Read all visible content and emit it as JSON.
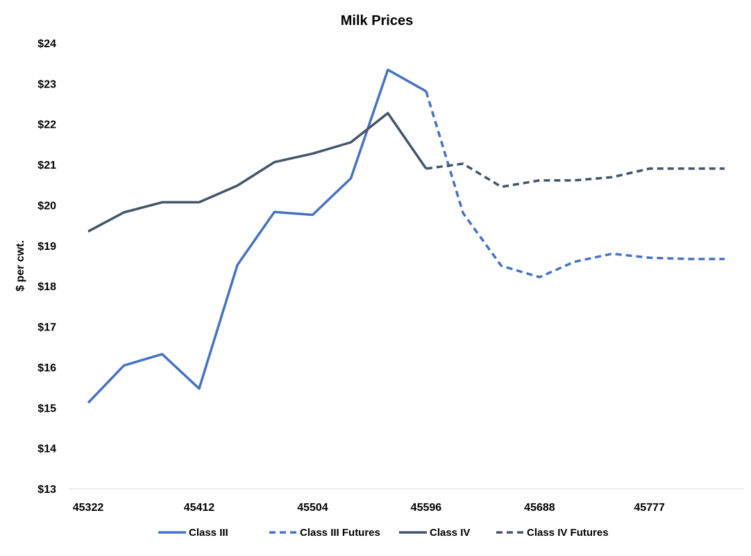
{
  "chart_data": {
    "type": "line",
    "title": "Milk Prices",
    "xlabel": "",
    "ylabel": "$ per cwt.",
    "xlim": [
      45322,
      45838
    ],
    "ylim": [
      13,
      24
    ],
    "y_ticks": [
      13,
      14,
      15,
      16,
      17,
      18,
      19,
      20,
      21,
      22,
      23,
      24
    ],
    "y_tick_labels": [
      "$13",
      "$14",
      "$15",
      "$16",
      "$17",
      "$18",
      "$19",
      "$20",
      "$21",
      "$22",
      "$23",
      "$24"
    ],
    "x_ticks": [
      45322,
      45412,
      45504,
      45596,
      45688,
      45777
    ],
    "x_tick_labels": [
      "45322",
      "45412",
      "45504",
      "45596",
      "45688",
      "45777"
    ],
    "grid": false,
    "legend_position": "bottom",
    "series": [
      {
        "name": "Class III",
        "color": "#4472C4",
        "dash": "solid",
        "x": [
          45322,
          45351,
          45382,
          45412,
          45443,
          45473,
          45504,
          45535,
          45565,
          45596
        ],
        "y": [
          15.12,
          16.04,
          16.32,
          15.47,
          18.52,
          19.83,
          19.76,
          20.66,
          23.34,
          22.81
        ]
      },
      {
        "name": "Class III Futures",
        "color": "#4472C4",
        "dash": "dashed",
        "x": [
          45596,
          45626,
          45657,
          45688,
          45716,
          45747,
          45777,
          45808,
          45838
        ],
        "y": [
          22.81,
          19.8,
          18.5,
          18.22,
          18.6,
          18.8,
          18.7,
          18.67,
          18.67
        ]
      },
      {
        "name": "Class IV",
        "color": "#44546A",
        "dash": "solid",
        "x": [
          45322,
          45351,
          45382,
          45412,
          45443,
          45473,
          45504,
          45535,
          45565,
          45596
        ],
        "y": [
          19.35,
          19.82,
          20.07,
          20.07,
          20.48,
          21.06,
          21.27,
          21.55,
          22.27,
          20.9
        ]
      },
      {
        "name": "Class IV Futures",
        "color": "#44546A",
        "dash": "dashed",
        "x": [
          45596,
          45626,
          45657,
          45688,
          45716,
          45747,
          45777,
          45808,
          45838
        ],
        "y": [
          20.9,
          21.02,
          20.45,
          20.61,
          20.61,
          20.69,
          20.9,
          20.9,
          20.9
        ]
      }
    ]
  }
}
